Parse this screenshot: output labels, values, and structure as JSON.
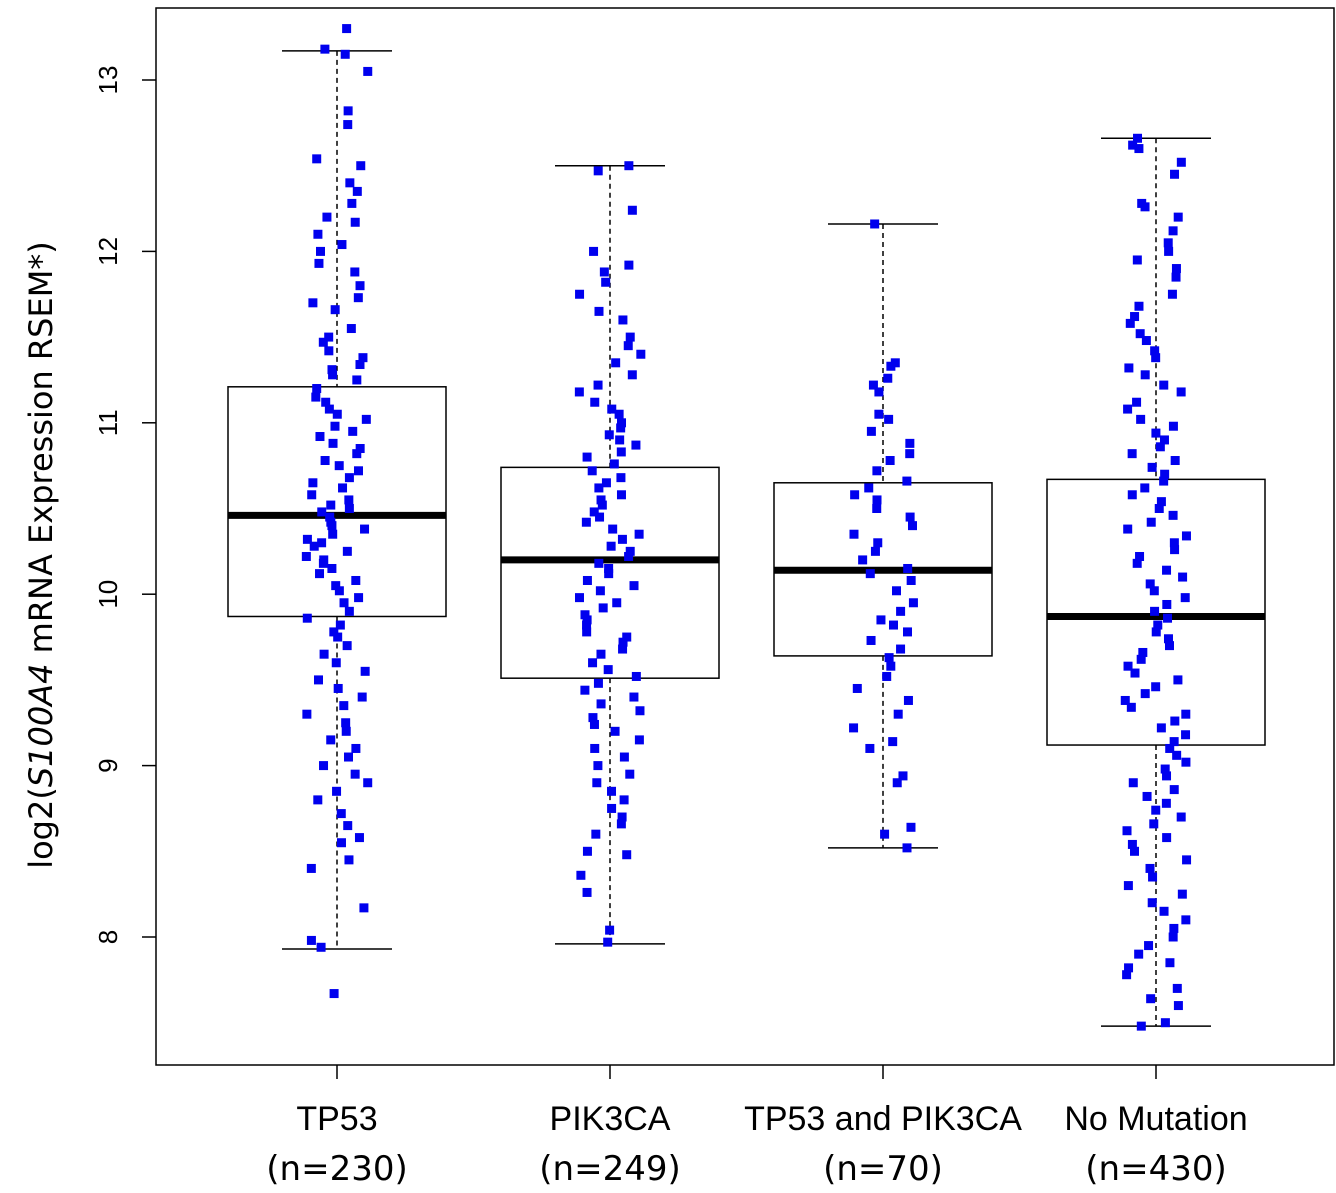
{
  "chart_data": {
    "type": "box",
    "ylabel_parts": {
      "prefix": "log2(",
      "gene": "S100A4",
      "suffix": " mRNA Expression RSEM*)"
    },
    "ylim": [
      7.4,
      13.4
    ],
    "yticks": [
      "8",
      "9",
      "10",
      "11",
      "12",
      "13"
    ],
    "point_color": "#0000ee",
    "groups": [
      {
        "name": "TP53",
        "n_label": "(n=230)",
        "q1": 9.87,
        "median": 10.46,
        "q3": 11.21,
        "whisker_low": 7.93,
        "whisker_high": 13.17,
        "points": [
          13.3,
          13.18,
          13.15,
          13.05,
          12.82,
          12.74,
          12.54,
          12.5,
          12.4,
          12.35,
          12.28,
          12.2,
          12.17,
          12.1,
          12.04,
          12.0,
          11.93,
          11.88,
          11.8,
          11.73,
          11.7,
          11.66,
          11.55,
          11.5,
          11.47,
          11.42,
          11.38,
          11.34,
          11.31,
          11.28,
          11.25,
          11.2,
          11.15,
          11.12,
          11.08,
          11.05,
          11.02,
          10.98,
          10.95,
          10.92,
          10.88,
          10.85,
          10.82,
          10.78,
          10.75,
          10.72,
          10.68,
          10.65,
          10.62,
          10.58,
          10.55,
          10.52,
          10.5,
          10.48,
          10.45,
          10.42,
          10.4,
          10.38,
          10.35,
          10.32,
          10.3,
          10.28,
          10.25,
          10.22,
          10.2,
          10.18,
          10.15,
          10.12,
          10.08,
          10.05,
          10.02,
          9.98,
          9.95,
          9.9,
          9.86,
          9.82,
          9.78,
          9.75,
          9.7,
          9.65,
          9.6,
          9.55,
          9.5,
          9.45,
          9.4,
          9.35,
          9.3,
          9.25,
          9.2,
          9.15,
          9.1,
          9.05,
          9.0,
          8.95,
          8.9,
          8.85,
          8.8,
          8.72,
          8.65,
          8.58,
          8.55,
          8.45,
          8.4,
          8.17,
          7.98,
          7.94,
          7.67
        ]
      },
      {
        "name": "PIK3CA",
        "n_label": "(n=249)",
        "q1": 9.51,
        "median": 10.2,
        "q3": 10.74,
        "whisker_low": 7.96,
        "whisker_high": 12.5,
        "points": [
          12.5,
          12.47,
          12.24,
          12.0,
          11.92,
          11.88,
          11.82,
          11.75,
          11.65,
          11.6,
          11.5,
          11.45,
          11.4,
          11.35,
          11.28,
          11.22,
          11.18,
          11.12,
          11.08,
          11.05,
          11.0,
          10.97,
          10.93,
          10.9,
          10.87,
          10.83,
          10.8,
          10.76,
          10.72,
          10.68,
          10.65,
          10.62,
          10.58,
          10.55,
          10.52,
          10.48,
          10.45,
          10.42,
          10.38,
          10.35,
          10.32,
          10.28,
          10.25,
          10.22,
          10.18,
          10.15,
          10.12,
          10.08,
          10.05,
          10.02,
          9.98,
          9.95,
          9.92,
          9.88,
          9.85,
          9.82,
          9.78,
          9.75,
          9.72,
          9.68,
          9.65,
          9.6,
          9.56,
          9.52,
          9.48,
          9.44,
          9.4,
          9.36,
          9.32,
          9.28,
          9.24,
          9.2,
          9.15,
          9.1,
          9.05,
          9.0,
          8.95,
          8.9,
          8.85,
          8.8,
          8.75,
          8.7,
          8.66,
          8.6,
          8.5,
          8.48,
          8.36,
          8.26,
          8.04,
          7.97
        ]
      },
      {
        "name": "TP53 and PIK3CA",
        "n_label": "(n=70)",
        "q1": 9.64,
        "median": 10.14,
        "q3": 10.65,
        "whisker_low": 8.52,
        "whisker_high": 12.16,
        "points": [
          12.16,
          11.35,
          11.33,
          11.26,
          11.22,
          11.18,
          11.05,
          11.02,
          10.95,
          10.88,
          10.82,
          10.78,
          10.72,
          10.66,
          10.62,
          10.58,
          10.55,
          10.5,
          10.45,
          10.4,
          10.35,
          10.3,
          10.25,
          10.2,
          10.15,
          10.12,
          10.08,
          10.02,
          9.95,
          9.9,
          9.85,
          9.82,
          9.78,
          9.73,
          9.68,
          9.63,
          9.58,
          9.52,
          9.45,
          9.38,
          9.3,
          9.22,
          9.14,
          9.1,
          8.94,
          8.9,
          8.64,
          8.6,
          8.52
        ]
      },
      {
        "name": "No Mutation",
        "n_label": "(n=430)",
        "q1": 9.12,
        "median": 9.87,
        "q3": 10.67,
        "whisker_low": 7.48,
        "whisker_high": 12.66,
        "points": [
          12.66,
          12.62,
          12.6,
          12.52,
          12.45,
          12.28,
          12.26,
          12.2,
          12.12,
          12.05,
          12.0,
          11.95,
          11.9,
          11.85,
          11.75,
          11.68,
          11.62,
          11.58,
          11.52,
          11.48,
          11.42,
          11.38,
          11.32,
          11.28,
          11.22,
          11.18,
          11.12,
          11.08,
          11.02,
          10.98,
          10.94,
          10.9,
          10.86,
          10.82,
          10.78,
          10.74,
          10.7,
          10.66,
          10.62,
          10.58,
          10.54,
          10.5,
          10.46,
          10.42,
          10.38,
          10.34,
          10.3,
          10.26,
          10.22,
          10.18,
          10.14,
          10.1,
          10.06,
          10.02,
          9.98,
          9.94,
          9.9,
          9.86,
          9.82,
          9.78,
          9.74,
          9.7,
          9.66,
          9.62,
          9.58,
          9.54,
          9.5,
          9.46,
          9.42,
          9.38,
          9.34,
          9.3,
          9.26,
          9.22,
          9.18,
          9.14,
          9.1,
          9.06,
          9.02,
          8.98,
          8.94,
          8.9,
          8.86,
          8.82,
          8.78,
          8.74,
          8.7,
          8.66,
          8.62,
          8.58,
          8.54,
          8.5,
          8.45,
          8.4,
          8.35,
          8.3,
          8.25,
          8.2,
          8.15,
          8.1,
          8.05,
          8.0,
          7.95,
          7.9,
          7.85,
          7.82,
          7.78,
          7.7,
          7.64,
          7.6,
          7.5,
          7.48
        ]
      }
    ]
  }
}
